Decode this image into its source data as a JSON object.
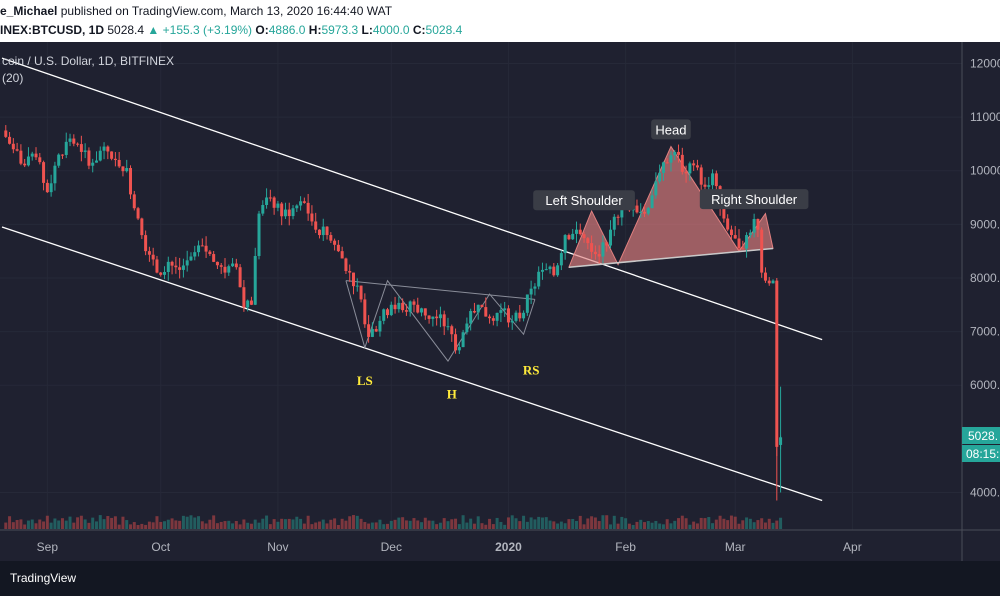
{
  "header": {
    "author": "e_Michael",
    "published_text": "published on TradingView.com, March 13, 2020 16:44:40 WAT",
    "symbol": "INEX:BTCUSD, 1D",
    "last": "5028.4",
    "change_arrow": "▲",
    "change": "+155.3 (+3.19%)",
    "o_label": "O:",
    "o_value": "4886.0",
    "h_label": "H:",
    "h_value": "5973.3",
    "l_label": "L:",
    "l_value": "4000.0",
    "c_label": "C:",
    "c_value": "5028.4"
  },
  "legend": {
    "title": "coin / U.S. Dollar, 1D, BITFINEX",
    "indicator": "(20)"
  },
  "price_labels": {
    "last_price": "5028.",
    "countdown": "08:15:"
  },
  "footer": {
    "brand": "TradingView"
  },
  "colors": {
    "background": "#1f2130",
    "up": "#26a69a",
    "down": "#ef5350",
    "axis_text": "#b2b5be",
    "channel": "#ffffff",
    "pattern_text": "#ffeb3b",
    "pattern_fill": "#e28080"
  },
  "chart_data": {
    "type": "candlestick",
    "x_ticks": [
      "Sep",
      "Oct",
      "Nov",
      "Dec",
      "2020",
      "Feb",
      "Mar",
      "Apr"
    ],
    "y_ticks": [
      "12000",
      "11000",
      "10000",
      "9000.",
      "8000.",
      "7000.",
      "6000.",
      "4000."
    ],
    "y_range": [
      3300,
      12400
    ],
    "date_range": [
      "2019-08-20",
      "2020-04-30"
    ],
    "series": [
      {
        "d": "2019-08-21",
        "o": 10750,
        "c": 10400
      },
      {
        "d": "2019-08-24",
        "o": 10400,
        "c": 10100
      },
      {
        "d": "2019-08-27",
        "o": 10100,
        "c": 10250
      },
      {
        "d": "2019-08-30",
        "o": 10250,
        "c": 9600
      },
      {
        "d": "2019-09-02",
        "o": 9600,
        "c": 10300
      },
      {
        "d": "2019-09-05",
        "o": 10300,
        "c": 10600
      },
      {
        "d": "2019-09-08",
        "o": 10600,
        "c": 10350
      },
      {
        "d": "2019-09-11",
        "o": 10350,
        "c": 10150
      },
      {
        "d": "2019-09-14",
        "o": 10150,
        "c": 10450
      },
      {
        "d": "2019-09-17",
        "o": 10450,
        "c": 10200
      },
      {
        "d": "2019-09-20",
        "o": 10200,
        "c": 10050
      },
      {
        "d": "2019-09-23",
        "o": 10050,
        "c": 9300
      },
      {
        "d": "2019-09-25",
        "o": 9300,
        "c": 8500
      },
      {
        "d": "2019-09-28",
        "o": 8500,
        "c": 8100
      },
      {
        "d": "2019-10-01",
        "o": 8100,
        "c": 8300
      },
      {
        "d": "2019-10-04",
        "o": 8300,
        "c": 8150
      },
      {
        "d": "2019-10-07",
        "o": 8150,
        "c": 8400
      },
      {
        "d": "2019-10-10",
        "o": 8400,
        "c": 8600
      },
      {
        "d": "2019-10-13",
        "o": 8600,
        "c": 8300
      },
      {
        "d": "2019-10-16",
        "o": 8300,
        "c": 8100
      },
      {
        "d": "2019-10-19",
        "o": 8100,
        "c": 8200
      },
      {
        "d": "2019-10-22",
        "o": 8200,
        "c": 7450
      },
      {
        "d": "2019-10-24",
        "o": 7450,
        "c": 7500
      },
      {
        "d": "2019-10-26",
        "o": 7500,
        "c": 9200
      },
      {
        "d": "2019-10-28",
        "o": 9200,
        "c": 9500
      },
      {
        "d": "2019-10-31",
        "o": 9500,
        "c": 9150
      },
      {
        "d": "2019-11-03",
        "o": 9150,
        "c": 9300
      },
      {
        "d": "2019-11-06",
        "o": 9300,
        "c": 9400
      },
      {
        "d": "2019-11-09",
        "o": 9400,
        "c": 8900
      },
      {
        "d": "2019-11-12",
        "o": 8900,
        "c": 8800
      },
      {
        "d": "2019-11-15",
        "o": 8800,
        "c": 8500
      },
      {
        "d": "2019-11-18",
        "o": 8500,
        "c": 8100
      },
      {
        "d": "2019-11-21",
        "o": 8100,
        "c": 7600
      },
      {
        "d": "2019-11-24",
        "o": 7600,
        "c": 6900
      },
      {
        "d": "2019-11-26",
        "o": 6900,
        "c": 7200
      },
      {
        "d": "2019-11-29",
        "o": 7200,
        "c": 7500
      },
      {
        "d": "2019-12-02",
        "o": 7500,
        "c": 7400
      },
      {
        "d": "2019-12-05",
        "o": 7400,
        "c": 7500
      },
      {
        "d": "2019-12-08",
        "o": 7500,
        "c": 7300
      },
      {
        "d": "2019-12-11",
        "o": 7300,
        "c": 7250
      },
      {
        "d": "2019-12-14",
        "o": 7250,
        "c": 7100
      },
      {
        "d": "2019-12-17",
        "o": 7100,
        "c": 6650
      },
      {
        "d": "2019-12-19",
        "o": 6650,
        "c": 7150
      },
      {
        "d": "2019-12-22",
        "o": 7150,
        "c": 7500
      },
      {
        "d": "2019-12-25",
        "o": 7500,
        "c": 7250
      },
      {
        "d": "2019-12-28",
        "o": 7250,
        "c": 7400
      },
      {
        "d": "2019-12-31",
        "o": 7400,
        "c": 7200
      },
      {
        "d": "2020-01-03",
        "o": 7200,
        "c": 7350
      },
      {
        "d": "2020-01-06",
        "o": 7350,
        "c": 7800
      },
      {
        "d": "2020-01-08",
        "o": 7800,
        "c": 8150
      },
      {
        "d": "2020-01-11",
        "o": 8150,
        "c": 8050
      },
      {
        "d": "2020-01-14",
        "o": 8050,
        "c": 8800
      },
      {
        "d": "2020-01-17",
        "o": 8800,
        "c": 8900
      },
      {
        "d": "2020-01-20",
        "o": 8900,
        "c": 8650
      },
      {
        "d": "2020-01-23",
        "o": 8650,
        "c": 8400
      },
      {
        "d": "2020-01-26",
        "o": 8400,
        "c": 8900
      },
      {
        "d": "2020-01-29",
        "o": 8900,
        "c": 9400
      },
      {
        "d": "2020-02-01",
        "o": 9400,
        "c": 9350
      },
      {
        "d": "2020-02-04",
        "o": 9350,
        "c": 9200
      },
      {
        "d": "2020-02-07",
        "o": 9200,
        "c": 9800
      },
      {
        "d": "2020-02-10",
        "o": 9800,
        "c": 10150
      },
      {
        "d": "2020-02-13",
        "o": 10150,
        "c": 10350
      },
      {
        "d": "2020-02-15",
        "o": 10350,
        "c": 9950
      },
      {
        "d": "2020-02-18",
        "o": 9950,
        "c": 10100
      },
      {
        "d": "2020-02-20",
        "o": 10100,
        "c": 9700
      },
      {
        "d": "2020-02-23",
        "o": 9700,
        "c": 9950
      },
      {
        "d": "2020-02-25",
        "o": 9950,
        "c": 9300
      },
      {
        "d": "2020-02-27",
        "o": 9300,
        "c": 8800
      },
      {
        "d": "2020-03-01",
        "o": 8800,
        "c": 8550
      },
      {
        "d": "2020-03-03",
        "o": 8550,
        "c": 8800
      },
      {
        "d": "2020-03-05",
        "o": 8800,
        "c": 9100
      },
      {
        "d": "2020-03-07",
        "o": 9100,
        "c": 8900
      },
      {
        "d": "2020-03-08",
        "o": 8900,
        "c": 8100
      },
      {
        "d": "2020-03-09",
        "o": 8100,
        "c": 7950
      },
      {
        "d": "2020-03-10",
        "o": 7950,
        "c": 7900
      },
      {
        "d": "2020-03-11",
        "o": 7900,
        "c": 7950
      },
      {
        "d": "2020-03-12",
        "o": 7950,
        "c": 4850
      },
      {
        "d": "2020-03-13",
        "o": 4886,
        "c": 5028.4
      }
    ],
    "annotations": [
      {
        "text": "Left Shoulder",
        "d": "2020-01-21",
        "y": 9450
      },
      {
        "text": "Head",
        "d": "2020-02-13",
        "y": 10770
      },
      {
        "text": "Right Shoulder",
        "d": "2020-03-06",
        "y": 9470
      }
    ],
    "pattern_labels": [
      {
        "text": "LS",
        "d": "2019-11-24",
        "y": 6000
      },
      {
        "text": "H",
        "d": "2019-12-17",
        "y": 5750
      },
      {
        "text": "RS",
        "d": "2020-01-07",
        "y": 6200
      }
    ]
  }
}
